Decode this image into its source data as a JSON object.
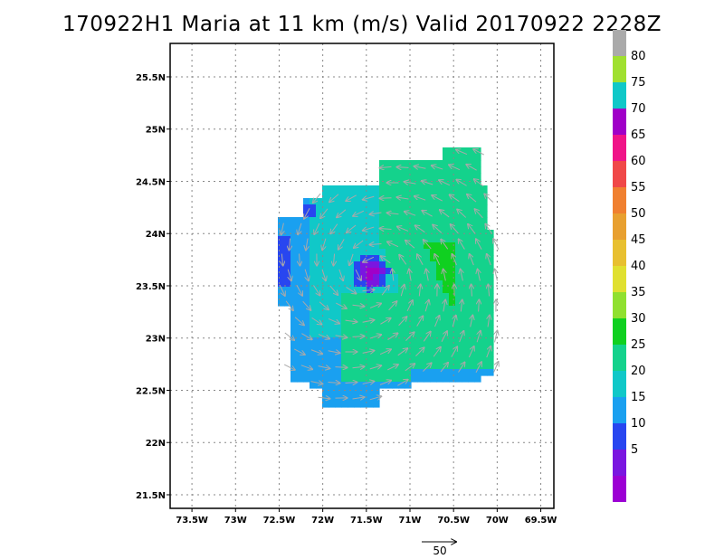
{
  "title": "170922H1 Maria at 11 km (m/s) Valid 20170922 2228Z",
  "colors": {
    "background": "#ffffff",
    "grid": "#888888",
    "vector": "#a9a9a9"
  },
  "map": {
    "lon_ticks": [
      {
        "value": -73.5,
        "label": "73.5W"
      },
      {
        "value": -73.0,
        "label": "73W"
      },
      {
        "value": -72.5,
        "label": "72.5W"
      },
      {
        "value": -72.0,
        "label": "72W"
      },
      {
        "value": -71.5,
        "label": "71.5W"
      },
      {
        "value": -71.0,
        "label": "71W"
      },
      {
        "value": -70.5,
        "label": "70.5W"
      },
      {
        "value": -70.0,
        "label": "70W"
      },
      {
        "value": -69.5,
        "label": "69.5W"
      }
    ],
    "lat_ticks": [
      {
        "value": 21.5,
        "label": "21.5N"
      },
      {
        "value": 22.0,
        "label": "22N"
      },
      {
        "value": 22.5,
        "label": "22.5N"
      },
      {
        "value": 23.0,
        "label": "23N"
      },
      {
        "value": 23.5,
        "label": "23.5N"
      },
      {
        "value": 24.0,
        "label": "24N"
      },
      {
        "value": 24.5,
        "label": "24.5N"
      },
      {
        "value": 25.0,
        "label": "25N"
      },
      {
        "value": 25.5,
        "label": "25.5N"
      }
    ],
    "lon_range": [
      -73.75,
      -69.35
    ],
    "lat_range": [
      21.37,
      25.82
    ],
    "storm_center": {
      "lon": -71.45,
      "lat": 23.63
    }
  },
  "colorbar": {
    "levels": [
      {
        "label": "",
        "color": "#9c00d4"
      },
      {
        "label": "5",
        "color": "#7a16e0"
      },
      {
        "label": "10",
        "color": "#2846f0"
      },
      {
        "label": "15",
        "color": "#1aa0f0"
      },
      {
        "label": "20",
        "color": "#10c8c8"
      },
      {
        "label": "25",
        "color": "#14d28c"
      },
      {
        "label": "30",
        "color": "#10d020"
      },
      {
        "label": "35",
        "color": "#90e030"
      },
      {
        "label": "40",
        "color": "#e0e030"
      },
      {
        "label": "45",
        "color": "#e8c030"
      },
      {
        "label": "50",
        "color": "#e8a030"
      },
      {
        "label": "55",
        "color": "#f08030"
      },
      {
        "label": "60",
        "color": "#f04848"
      },
      {
        "label": "65",
        "color": "#f01488"
      },
      {
        "label": "70",
        "color": "#a000c8"
      },
      {
        "label": "75",
        "color": "#10c8c8"
      },
      {
        "label": "80",
        "color": "#a0e030"
      },
      {
        "label": "",
        "color": "#aaaaaa"
      }
    ]
  },
  "reference_vector": {
    "label": "50"
  }
}
